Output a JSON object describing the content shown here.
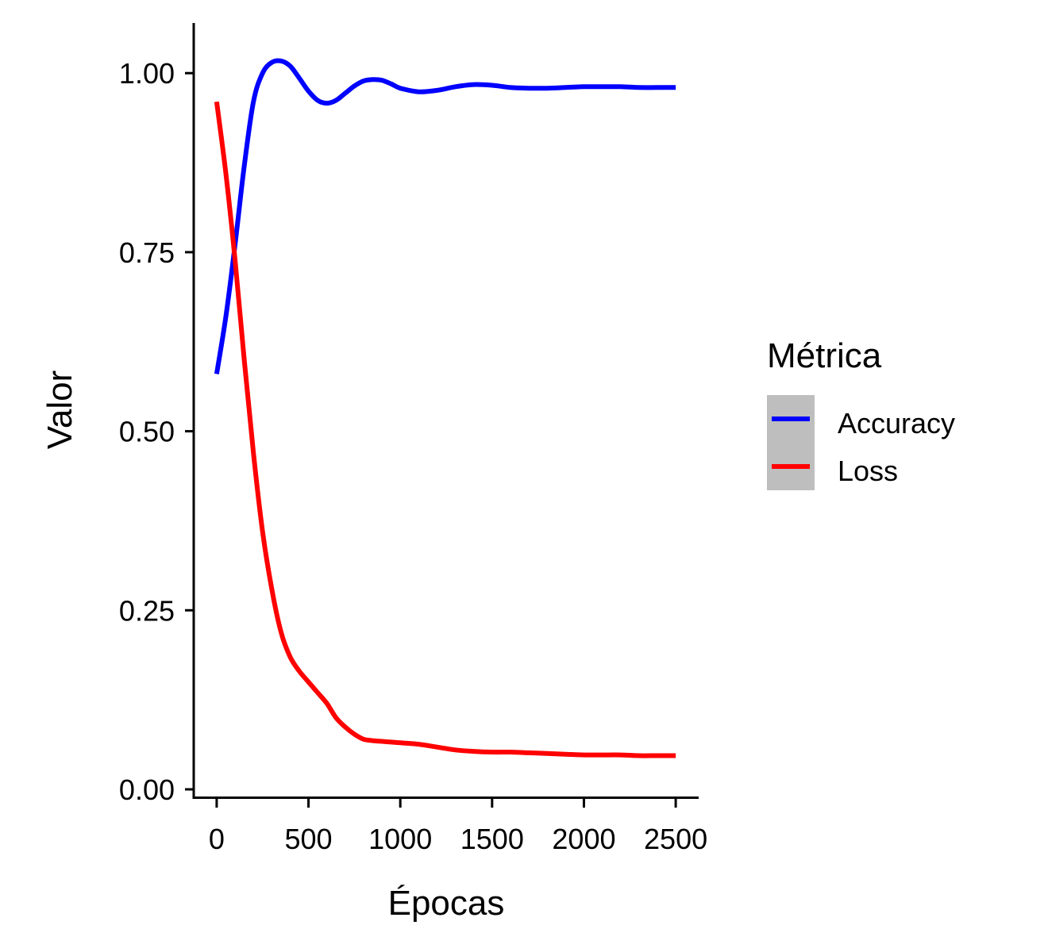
{
  "chart_data": {
    "type": "line",
    "xlabel": "Épocas",
    "ylabel": "Valor",
    "xlim": [
      -125,
      2625
    ],
    "ylim": [
      -0.01,
      1.07
    ],
    "xticks": [
      0,
      500,
      1000,
      1500,
      2000,
      2500
    ],
    "xtick_labels": [
      "0",
      "500",
      "1000",
      "1500",
      "2000",
      "2500"
    ],
    "yticks": [
      0,
      0.25,
      0.5,
      0.75,
      1.0
    ],
    "ytick_labels": [
      "0.00",
      "0.25",
      "0.50",
      "0.75",
      "1.00"
    ],
    "grid": false,
    "legend": {
      "title": "Métrica",
      "placement": "right"
    },
    "series": [
      {
        "name": "Accuracy",
        "color": "#0000ff",
        "x": [
          0,
          50,
          100,
          150,
          200,
          250,
          300,
          350,
          400,
          450,
          500,
          550,
          600,
          650,
          700,
          750,
          800,
          850,
          900,
          950,
          1000,
          1100,
          1200,
          1300,
          1400,
          1500,
          1600,
          1700,
          1800,
          1900,
          2000,
          2100,
          2200,
          2300,
          2400,
          2500
        ],
        "values": [
          0.58,
          0.66,
          0.76,
          0.87,
          0.96,
          1.0,
          1.015,
          1.017,
          1.01,
          0.993,
          0.975,
          0.962,
          0.958,
          0.962,
          0.972,
          0.982,
          0.989,
          0.991,
          0.99,
          0.985,
          0.979,
          0.974,
          0.976,
          0.981,
          0.984,
          0.983,
          0.98,
          0.979,
          0.979,
          0.98,
          0.981,
          0.981,
          0.981,
          0.98,
          0.98,
          0.98
        ]
      },
      {
        "name": "Loss",
        "color": "#ff0000",
        "x": [
          0,
          50,
          100,
          150,
          200,
          250,
          300,
          350,
          400,
          450,
          500,
          550,
          600,
          650,
          700,
          750,
          800,
          850,
          900,
          950,
          1000,
          1100,
          1200,
          1300,
          1400,
          1500,
          1600,
          1700,
          1800,
          1900,
          2000,
          2100,
          2200,
          2300,
          2400,
          2500
        ],
        "values": [
          0.96,
          0.86,
          0.74,
          0.6,
          0.47,
          0.36,
          0.28,
          0.22,
          0.185,
          0.165,
          0.15,
          0.135,
          0.12,
          0.1,
          0.087,
          0.077,
          0.07,
          0.068,
          0.067,
          0.066,
          0.065,
          0.063,
          0.059,
          0.055,
          0.053,
          0.052,
          0.052,
          0.051,
          0.05,
          0.049,
          0.048,
          0.048,
          0.048,
          0.047,
          0.047,
          0.047
        ]
      }
    ]
  }
}
